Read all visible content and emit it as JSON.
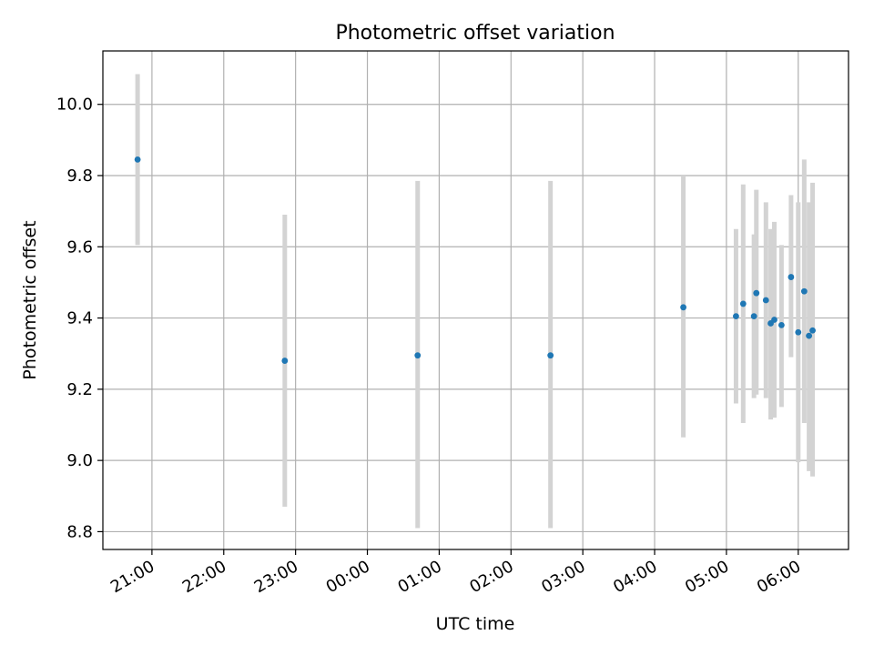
{
  "chart_data": {
    "type": "scatter",
    "title": "Photometric offset variation",
    "xlabel": "UTC time",
    "ylabel": "Photometric offset",
    "x_axis": {
      "kind": "time",
      "ticks": [
        "21:00",
        "22:00",
        "23:00",
        "00:00",
        "01:00",
        "02:00",
        "03:00",
        "04:00",
        "05:00",
        "06:00"
      ],
      "range": [
        "20:19",
        "06:42"
      ]
    },
    "y_axis": {
      "ticks": [
        "8.8",
        "9.0",
        "9.2",
        "9.4",
        "9.6",
        "9.8",
        "10.0"
      ],
      "ylim": [
        8.75,
        10.15
      ]
    },
    "grid": true,
    "colors": {
      "marker": "#1f77b4",
      "errorbar": "#d3d3d3",
      "grid": "#b0b0b0"
    },
    "points": [
      {
        "t": "20:48",
        "y": 9.845,
        "ylo": 9.605,
        "yhi": 10.085
      },
      {
        "t": "22:51",
        "y": 9.28,
        "ylo": 8.87,
        "yhi": 9.69
      },
      {
        "t": "00:42",
        "y": 9.295,
        "ylo": 8.81,
        "yhi": 9.785
      },
      {
        "t": "02:33",
        "y": 9.295,
        "ylo": 8.81,
        "yhi": 9.785
      },
      {
        "t": "04:24",
        "y": 9.43,
        "ylo": 9.065,
        "yhi": 9.8
      },
      {
        "t": "05:08",
        "y": 9.405,
        "ylo": 9.16,
        "yhi": 9.65
      },
      {
        "t": "05:14",
        "y": 9.44,
        "ylo": 9.105,
        "yhi": 9.775
      },
      {
        "t": "05:23",
        "y": 9.405,
        "ylo": 9.175,
        "yhi": 9.635
      },
      {
        "t": "05:25",
        "y": 9.47,
        "ylo": 9.185,
        "yhi": 9.76
      },
      {
        "t": "05:33",
        "y": 9.45,
        "ylo": 9.175,
        "yhi": 9.725
      },
      {
        "t": "05:37",
        "y": 9.385,
        "ylo": 9.115,
        "yhi": 9.65
      },
      {
        "t": "05:40",
        "y": 9.395,
        "ylo": 9.12,
        "yhi": 9.67
      },
      {
        "t": "05:46",
        "y": 9.38,
        "ylo": 9.15,
        "yhi": 9.605
      },
      {
        "t": "05:54",
        "y": 9.515,
        "ylo": 9.29,
        "yhi": 9.745
      },
      {
        "t": "06:00",
        "y": 9.36,
        "ylo": 8.995,
        "yhi": 9.725
      },
      {
        "t": "06:05",
        "y": 9.475,
        "ylo": 9.105,
        "yhi": 9.845
      },
      {
        "t": "06:09",
        "y": 9.35,
        "ylo": 8.97,
        "yhi": 9.725
      },
      {
        "t": "06:12",
        "y": 9.365,
        "ylo": 8.955,
        "yhi": 9.78
      }
    ]
  }
}
